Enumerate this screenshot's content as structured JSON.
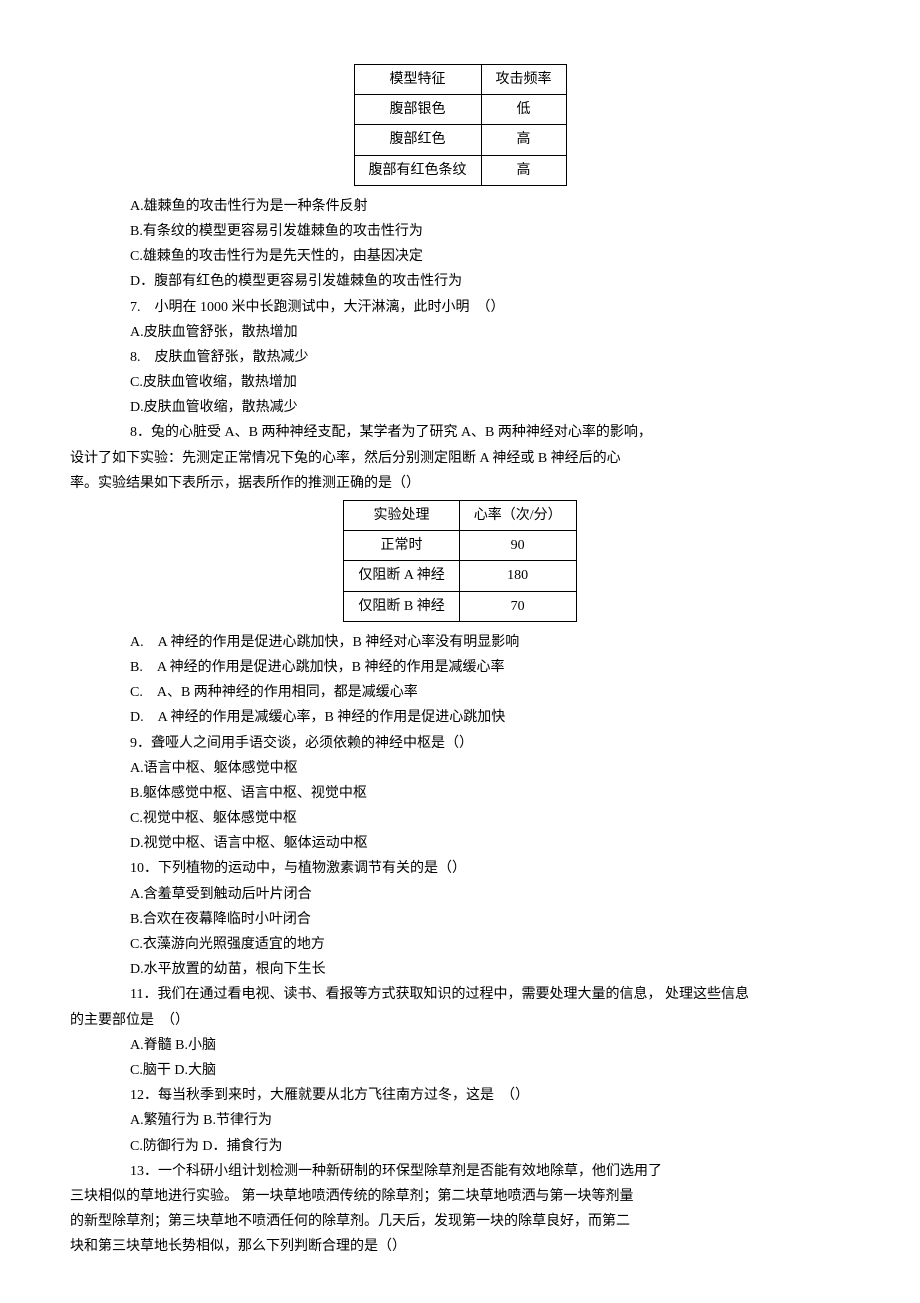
{
  "table1": {
    "headers": [
      "模型特征",
      "攻击频率"
    ],
    "rows": [
      [
        "腹部银色",
        "低"
      ],
      [
        "腹部红色",
        "高"
      ],
      [
        "腹部有红色条纹",
        "高"
      ]
    ]
  },
  "q6": {
    "A": "A.雄棘鱼的攻击性行为是一种条件反射",
    "B": "B.有条纹的模型更容易引发雄棘鱼的攻击性行为",
    "C": "C.雄棘鱼的攻击性行为是先天性的，由基因决定",
    "D": "D．腹部有红色的模型更容易引发雄棘鱼的攻击性行为"
  },
  "q7": {
    "stem": "7.　小明在 1000 米中长跑测试中，大汗淋漓，此时小明　（）",
    "A": "A.皮肤血管舒张，散热增加",
    "B": "8.　皮肤血管舒张，散热减少",
    "C": "C.皮肤血管收缩，散热增加",
    "D": "D.皮肤血管收缩，散热减少"
  },
  "q8": {
    "stem1": "8．兔的心脏受 A、B 两种神经支配，某学者为了研究 A、B 两种神经对心率的影响，",
    "stem2": "设计了如下实验：先测定正常情况下兔的心率，然后分别测定阻断 A 神经或 B 神经后的心",
    "stem3": "率。实验结果如下表所示，据表所作的推测正确的是（）"
  },
  "table2": {
    "headers": [
      "实验处理",
      "心率（次/分）"
    ],
    "rows": [
      [
        "正常时",
        "90"
      ],
      [
        "仅阻断 A 神经",
        "180"
      ],
      [
        "仅阻断 B 神经",
        "70"
      ]
    ]
  },
  "q8opts": {
    "A": "A.　A 神经的作用是促进心跳加快，B 神经对心率没有明显影响",
    "B": "B.　A 神经的作用是促进心跳加快，B 神经的作用是减缓心率",
    "C": "C.　A、B 两种神经的作用相同，都是减缓心率",
    "D": "D.　A 神经的作用是减缓心率，B 神经的作用是促进心跳加快"
  },
  "q9": {
    "stem": "9．聋哑人之间用手语交谈，必须依赖的神经中枢是（）",
    "A": "A.语言中枢、躯体感觉中枢",
    "B": "B.躯体感觉中枢、语言中枢、视觉中枢",
    "C": "C.视觉中枢、躯体感觉中枢",
    "D": "D.视觉中枢、语言中枢、躯体运动中枢"
  },
  "q10": {
    "stem": "10．下列植物的运动中，与植物激素调节有关的是（）",
    "A": "A.含羞草受到触动后叶片闭合",
    "B": "B.合欢在夜幕降临时小叶闭合",
    "C": "C.衣藻游向光照强度适宜的地方",
    "D": "D.水平放置的幼苗，根向下生长"
  },
  "q11": {
    "stem1": "11．我们在通过看电视、读书、看报等方式获取知识的过程中，需要处理大量的信息， 处理这些信息",
    "stem2": "的主要部位是　（）",
    "A": "A.脊髓 B.小脑",
    "C": "C.脑干 D.大脑"
  },
  "q12": {
    "stem": "12．每当秋季到来时，大雁就要从北方飞往南方过冬，这是　（）",
    "A": "A.繁殖行为 B.节律行为",
    "C": "C.防御行为 D．捕食行为"
  },
  "q13": {
    "l1": "13．一个科研小组计划检测一种新研制的环保型除草剂是否能有效地除草，他们选用了",
    "l2": "三块相似的草地进行实验。 第一块草地喷洒传统的除草剂；第二块草地喷洒与第一块等剂量",
    "l3": "的新型除草剂；第三块草地不喷洒任何的除草剂。几天后，发现第一块的除草良好，而第二",
    "l4": "块和第三块草地长势相似，那么下列判断合理的是（）"
  }
}
